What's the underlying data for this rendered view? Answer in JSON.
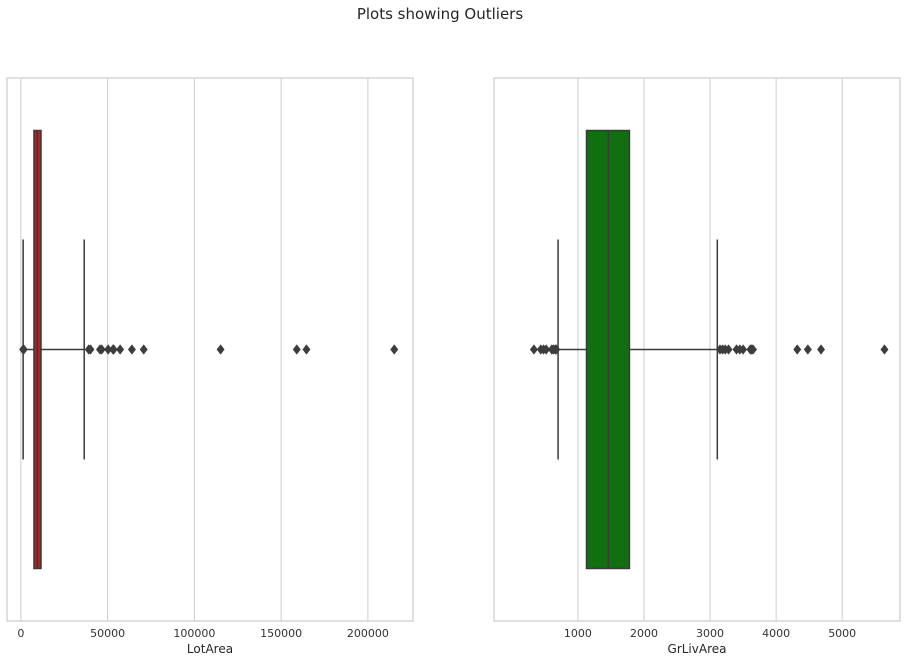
{
  "figure": {
    "title": "Plots showing Outliers"
  },
  "chart_data": [
    {
      "type": "box",
      "orientation": "horizontal",
      "xlabel": "LotArea",
      "xlim": [
        -8000,
        226000
      ],
      "xticks": [
        0,
        50000,
        100000,
        150000,
        200000
      ],
      "xtick_labels": [
        "0",
        "50000",
        "100000",
        "150000",
        "200000"
      ],
      "grid": true,
      "box_color": "#b22222",
      "box": {
        "whisker_low": 1300,
        "q1": 7550,
        "median": 9480,
        "q3": 11600,
        "whisker_high": 36500
      },
      "outliers": [
        1300,
        1490,
        1680,
        39100,
        40100,
        45600,
        46600,
        50300,
        53100,
        53500,
        57200,
        64000,
        70800,
        115100,
        159000,
        164600,
        215200
      ]
    },
    {
      "type": "box",
      "orientation": "horizontal",
      "xlabel": "GrLivArea",
      "xlim": [
        -270,
        5875
      ],
      "xticks": [
        1000,
        2000,
        3000,
        4000,
        5000
      ],
      "xtick_labels": [
        "1000",
        "2000",
        "3000",
        "4000",
        "5000"
      ],
      "grid": true,
      "box_color": "#107010",
      "box": {
        "whisker_low": 700,
        "q1": 1130,
        "median": 1460,
        "q3": 1780,
        "whisker_high": 3110
      },
      "outliers": [
        334,
        438,
        480,
        520,
        605,
        630,
        660,
        672,
        3150,
        3190,
        3230,
        3280,
        3400,
        3450,
        3500,
        3610,
        3630,
        3650,
        4320,
        4480,
        4680,
        5640
      ]
    }
  ]
}
